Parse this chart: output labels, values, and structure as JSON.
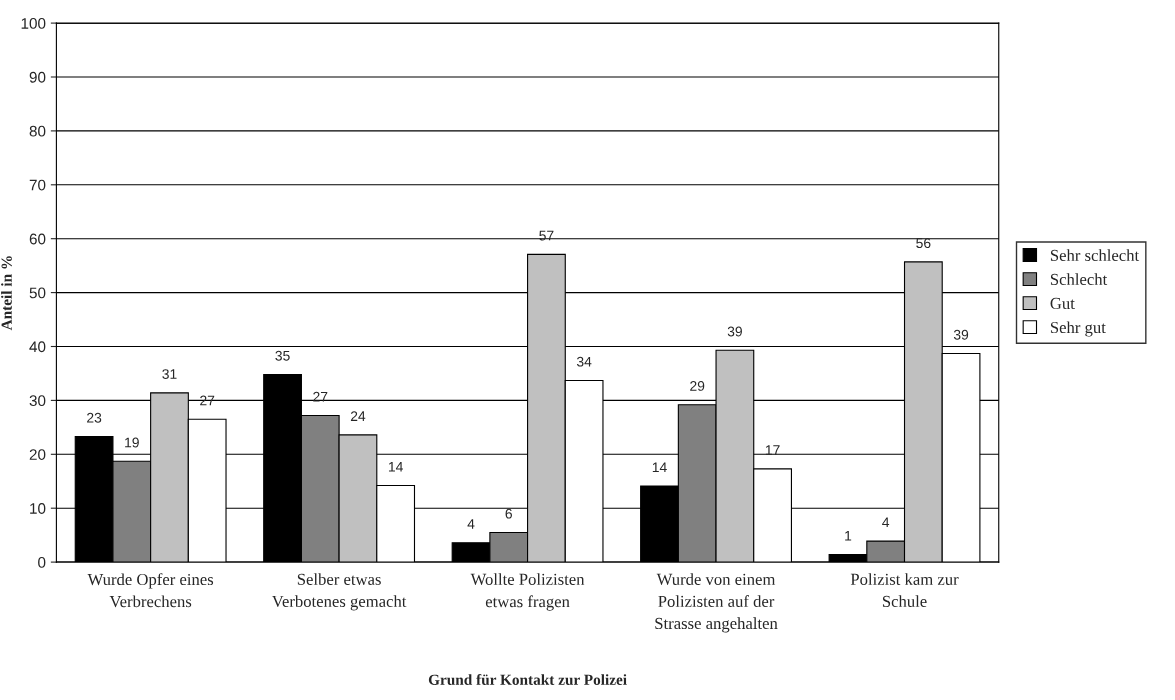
{
  "chart_data": {
    "type": "bar",
    "xlabel": "Grund für Kontakt zur Polizei",
    "ylabel": "Anteil in %",
    "categories": [
      "Wurde Opfer eines Verbrechens",
      "Selber etwas Verbotenes gemacht",
      "Wollte Polizisten etwas fragen",
      "Wurde von einem Polizisten auf der Strasse angehalten",
      "Polizist kam zur Schule"
    ],
    "series": [
      {
        "name": "Sehr schlecht",
        "color": "#000000",
        "values": [
          23.3,
          34.8,
          3.6,
          14.1,
          1.4
        ],
        "value_labels": [
          "23",
          "35",
          "4",
          "14",
          "1"
        ]
      },
      {
        "name": "Schlecht",
        "color": "#808080",
        "values": [
          18.7,
          27.2,
          5.5,
          29.2,
          3.9
        ],
        "value_labels": [
          "19",
          "27",
          "6",
          "29",
          "4"
        ]
      },
      {
        "name": "Gut",
        "color": "#c0c0c0",
        "values": [
          31.4,
          23.6,
          57.1,
          39.3,
          55.7
        ],
        "value_labels": [
          "31",
          "24",
          "57",
          "39",
          "56"
        ]
      },
      {
        "name": "Sehr gut",
        "color": "#ffffff",
        "values": [
          26.5,
          14.2,
          33.7,
          17.3,
          38.7
        ],
        "value_labels": [
          "27",
          "14",
          "34",
          "17",
          "39"
        ]
      }
    ],
    "ylim": [
      0,
      100
    ],
    "yticks": [
      0,
      10,
      20,
      30,
      40,
      50,
      60,
      70,
      80,
      90,
      100
    ],
    "grid": "y",
    "legend": "right"
  }
}
